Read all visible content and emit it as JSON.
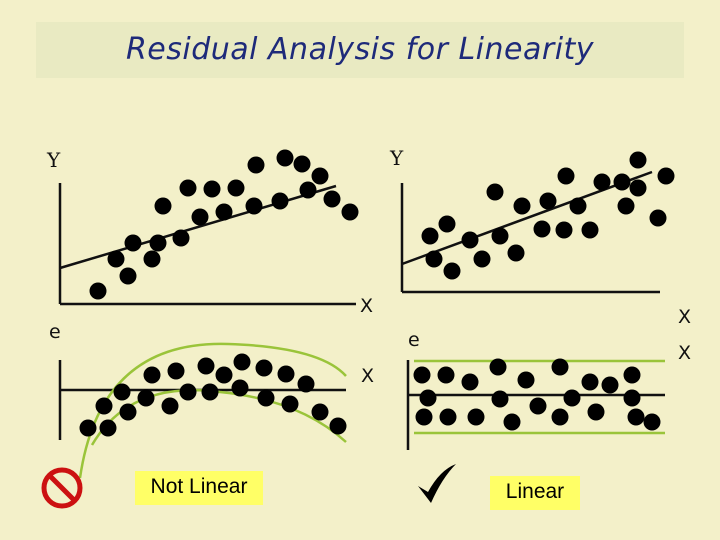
{
  "title": "Residual Analysis for Linearity",
  "labels": {
    "y_left": "Y",
    "y_right": "Y",
    "x_top_left": "X",
    "x_top_right": "X",
    "e_left": "e",
    "e_right": "e",
    "x_bottom_left": "X",
    "x_bottom_right": "X"
  },
  "verdicts": {
    "left": "Not Linear",
    "right": "Linear",
    "left_icon": "prohibition-icon",
    "right_icon": "checkmark-icon"
  },
  "colors": {
    "background": "#f3f0c9",
    "title_text": "#1e2a7a",
    "band_lines": "#9ac43a",
    "prohibition": "#cc1111",
    "label_highlight": "#ffff66"
  }
}
